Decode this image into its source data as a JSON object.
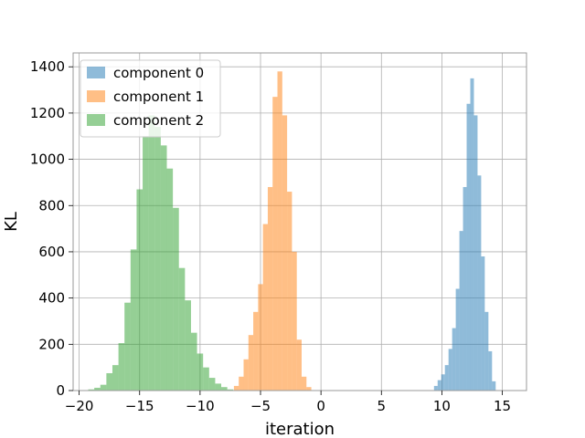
{
  "chart_data": {
    "type": "bar",
    "subtype": "histogram",
    "xlabel": "iteration",
    "ylabel": "KL",
    "xlim": [
      -20.5,
      17
    ],
    "ylim": [
      0,
      1460
    ],
    "xticks": [
      -20,
      -15,
      -10,
      -5,
      0,
      5,
      10,
      15
    ],
    "yticks": [
      0,
      200,
      400,
      600,
      800,
      1000,
      1200,
      1400
    ],
    "grid": true,
    "legend_position": "top-left",
    "series": [
      {
        "name": "component 0",
        "color": "#1f77b4",
        "bin_width": 0.3,
        "bins": [
          {
            "x": 9.5,
            "y": 20
          },
          {
            "x": 9.8,
            "y": 45
          },
          {
            "x": 10.1,
            "y": 70
          },
          {
            "x": 10.4,
            "y": 110
          },
          {
            "x": 10.7,
            "y": 180
          },
          {
            "x": 11.0,
            "y": 270
          },
          {
            "x": 11.3,
            "y": 440
          },
          {
            "x": 11.6,
            "y": 690
          },
          {
            "x": 11.9,
            "y": 880
          },
          {
            "x": 12.2,
            "y": 1240
          },
          {
            "x": 12.5,
            "y": 1350
          },
          {
            "x": 12.8,
            "y": 1190
          },
          {
            "x": 13.1,
            "y": 930
          },
          {
            "x": 13.4,
            "y": 580
          },
          {
            "x": 13.7,
            "y": 340
          },
          {
            "x": 14.0,
            "y": 170
          },
          {
            "x": 14.3,
            "y": 40
          }
        ]
      },
      {
        "name": "component 1",
        "color": "#ff7f0e",
        "bin_width": 0.4,
        "bins": [
          {
            "x": -7.0,
            "y": 20
          },
          {
            "x": -6.6,
            "y": 60
          },
          {
            "x": -6.2,
            "y": 135
          },
          {
            "x": -5.8,
            "y": 240
          },
          {
            "x": -5.4,
            "y": 340
          },
          {
            "x": -5.0,
            "y": 460
          },
          {
            "x": -4.6,
            "y": 720
          },
          {
            "x": -4.2,
            "y": 880
          },
          {
            "x": -3.8,
            "y": 1270
          },
          {
            "x": -3.4,
            "y": 1380
          },
          {
            "x": -3.0,
            "y": 1190
          },
          {
            "x": -2.6,
            "y": 860
          },
          {
            "x": -2.2,
            "y": 600
          },
          {
            "x": -1.8,
            "y": 220
          },
          {
            "x": -1.4,
            "y": 60
          },
          {
            "x": -1.0,
            "y": 15
          }
        ]
      },
      {
        "name": "component 2",
        "color": "#2ca02c",
        "bin_width": 0.5,
        "bins": [
          {
            "x": -19.0,
            "y": 5
          },
          {
            "x": -18.5,
            "y": 12
          },
          {
            "x": -18.0,
            "y": 25
          },
          {
            "x": -17.5,
            "y": 75
          },
          {
            "x": -17.0,
            "y": 110
          },
          {
            "x": -16.5,
            "y": 205
          },
          {
            "x": -16.0,
            "y": 380
          },
          {
            "x": -15.5,
            "y": 610
          },
          {
            "x": -15.0,
            "y": 870
          },
          {
            "x": -14.5,
            "y": 1100
          },
          {
            "x": -14.0,
            "y": 1190
          },
          {
            "x": -13.5,
            "y": 1140
          },
          {
            "x": -13.0,
            "y": 1060
          },
          {
            "x": -12.5,
            "y": 960
          },
          {
            "x": -12.0,
            "y": 790
          },
          {
            "x": -11.5,
            "y": 530
          },
          {
            "x": -11.0,
            "y": 390
          },
          {
            "x": -10.5,
            "y": 250
          },
          {
            "x": -10.0,
            "y": 160
          },
          {
            "x": -9.5,
            "y": 100
          },
          {
            "x": -9.0,
            "y": 55
          },
          {
            "x": -8.5,
            "y": 30
          },
          {
            "x": -8.0,
            "y": 15
          },
          {
            "x": -7.5,
            "y": 5
          }
        ]
      }
    ]
  }
}
